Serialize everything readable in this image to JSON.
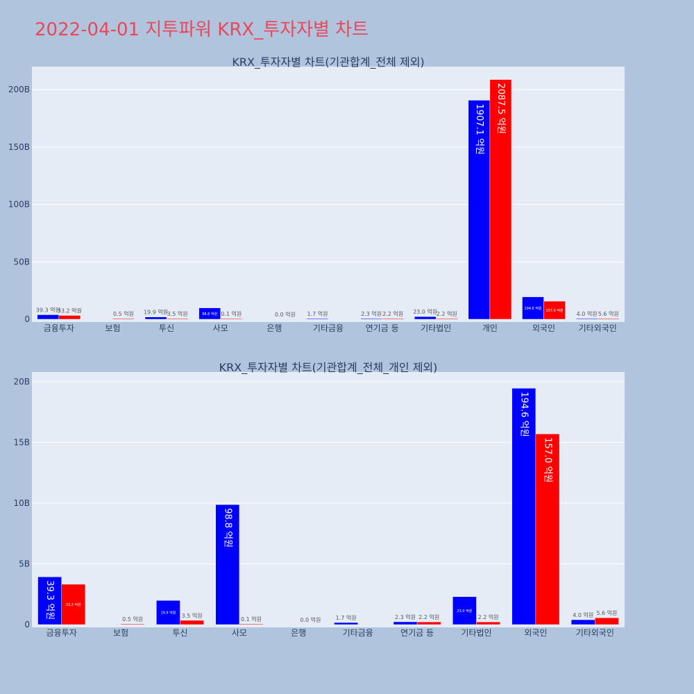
{
  "title": "2022-04-01 지투파워 KRX_투자자별 차트",
  "colors": {
    "buy": "#0000ff",
    "sell": "#ff0000",
    "plot_bg": "#e5ecf6",
    "page_bg": "#b0c4de",
    "title": "#e8485a"
  },
  "chart_data": [
    {
      "type": "bar",
      "title": "KRX_투자자별 차트(기관합계_전체 제외)",
      "categories": [
        "금융투자",
        "보험",
        "투신",
        "사모",
        "은행",
        "기타금융",
        "연기금 등",
        "기타법인",
        "개인",
        "외국인",
        "기타외국인"
      ],
      "series": [
        {
          "values": [
            3.93,
            0,
            1.99,
            9.88,
            0,
            0.17,
            0.23,
            2.3,
            190.71,
            19.46,
            0.4
          ],
          "labels": [
            "39.3 억원",
            "",
            "19.9 억원",
            "98.8 억원",
            "",
            "1.7 억원",
            "2.3 억원",
            "23.0 억원",
            "1907.1 억원",
            "194.6 억원",
            "4.0 억원"
          ]
        },
        {
          "values": [
            3.32,
            0.05,
            0.35,
            0.01,
            0.0,
            0,
            0.22,
            0.22,
            208.75,
            15.7,
            0.56
          ],
          "labels": [
            "33.2 억원",
            "0.5 억원",
            "3.5 억원",
            "0.1 억원",
            "0.0 억원",
            "",
            "2.2 억원",
            "2.2 억원",
            "2087.5 억원",
            "157.0 억원",
            "5.6 억원"
          ]
        }
      ],
      "yticks": [
        "0",
        "50B",
        "100B",
        "150B",
        "200B"
      ],
      "ylim": [
        0,
        220
      ],
      "grid": true
    },
    {
      "type": "bar",
      "title": "KRX_투자자별 차트(기관합계_전체_개인 제외)",
      "categories": [
        "금융투자",
        "보험",
        "투신",
        "사모",
        "은행",
        "기타금융",
        "연기금 등",
        "기타법인",
        "외국인",
        "기타외국인"
      ],
      "series": [
        {
          "values": [
            3.93,
            0,
            1.99,
            9.88,
            0,
            0.17,
            0.23,
            2.3,
            19.46,
            0.4
          ],
          "labels": [
            "39.3 억원",
            "",
            "19.9 억원",
            "98.8 억원",
            "",
            "1.7 억원",
            "2.3 억원",
            "23.0 억원",
            "194.6 억원",
            "4.0 억원"
          ]
        },
        {
          "values": [
            3.32,
            0.05,
            0.35,
            0.01,
            0.0,
            0,
            0.22,
            0.22,
            15.7,
            0.56
          ],
          "labels": [
            "33.2 억원",
            "0.5 억원",
            "3.5 억원",
            "0.1 억원",
            "0.0 억원",
            "",
            "2.2 억원",
            "2.2 억원",
            "157.0 억원",
            "5.6 억원"
          ]
        }
      ],
      "yticks": [
        "0",
        "5B",
        "10B",
        "15B",
        "20B"
      ],
      "ylim": [
        0,
        20.8
      ],
      "grid": true
    }
  ]
}
